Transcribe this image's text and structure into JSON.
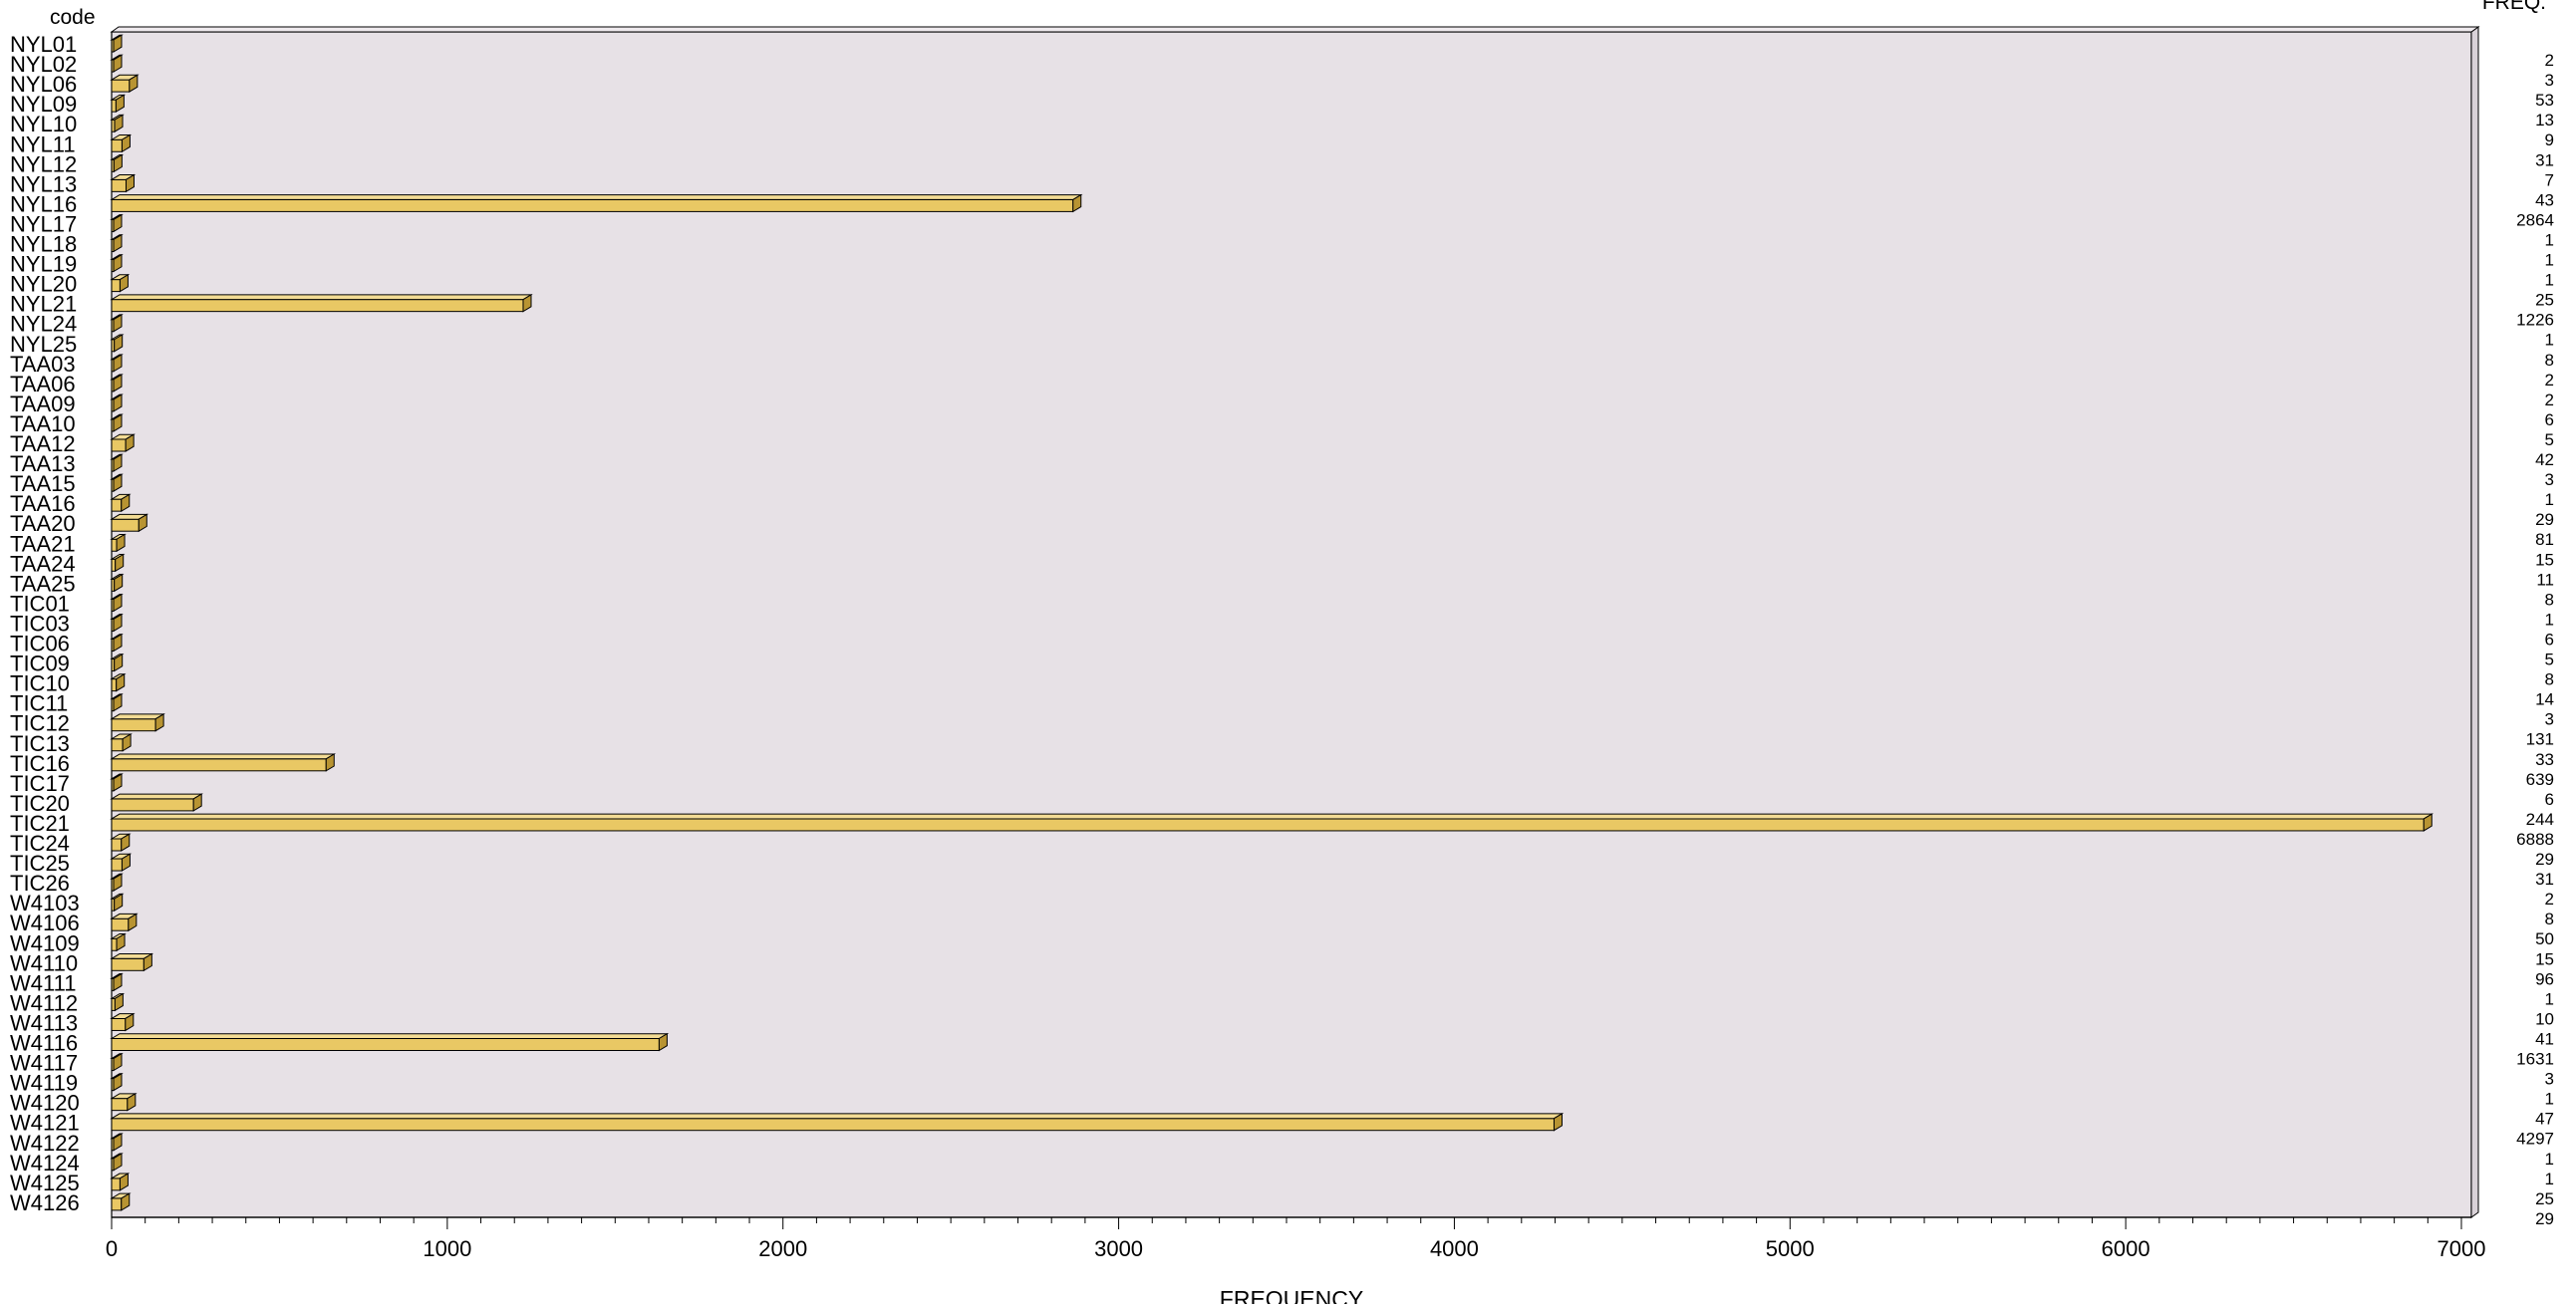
{
  "chart_data": {
    "type": "bar",
    "orientation": "horizontal",
    "ylabel": "code",
    "xlabel": "FREQUENCY",
    "freq_column_label": "FREQ.",
    "xlim": [
      0,
      7000
    ],
    "xticks": [
      0,
      1000,
      2000,
      3000,
      4000,
      5000,
      6000,
      7000
    ],
    "grid": false,
    "colors": {
      "plot_background": "#e7e1e6",
      "bar_front": "#e9c864",
      "bar_top": "#f3dc95",
      "bar_side": "#b89432",
      "outline": "#000000"
    },
    "categories": [
      "NYL01",
      "NYL02",
      "NYL06",
      "NYL09",
      "NYL10",
      "NYL11",
      "NYL12",
      "NYL13",
      "NYL16",
      "NYL17",
      "NYL18",
      "NYL19",
      "NYL20",
      "NYL21",
      "NYL24",
      "NYL25",
      "TAA03",
      "TAA06",
      "TAA09",
      "TAA10",
      "TAA12",
      "TAA13",
      "TAA15",
      "TAA16",
      "TAA20",
      "TAA21",
      "TAA24",
      "TAA25",
      "TIC01",
      "TIC03",
      "TIC06",
      "TIC09",
      "TIC10",
      "TIC11",
      "TIC12",
      "TIC13",
      "TIC16",
      "TIC17",
      "TIC20",
      "TIC21",
      "TIC24",
      "TIC25",
      "TIC26",
      "W4103",
      "W4106",
      "W4109",
      "W4110",
      "W4111",
      "W4112",
      "W4113",
      "W4116",
      "W4117",
      "W4119",
      "W4120",
      "W4121",
      "W4122",
      "W4124",
      "W4125",
      "W4126"
    ],
    "values": [
      2,
      3,
      53,
      13,
      9,
      31,
      7,
      43,
      2864,
      1,
      1,
      1,
      25,
      1226,
      1,
      8,
      2,
      2,
      6,
      5,
      42,
      3,
      1,
      29,
      81,
      15,
      11,
      8,
      1,
      6,
      5,
      8,
      14,
      3,
      131,
      33,
      639,
      6,
      244,
      6888,
      29,
      31,
      2,
      8,
      50,
      15,
      96,
      1,
      10,
      41,
      1631,
      3,
      1,
      47,
      4297,
      1,
      1,
      25,
      29
    ],
    "freq_labels": [
      "2",
      "3",
      "53",
      "13",
      "9",
      "31",
      "7",
      "43",
      "2864",
      "1",
      "1",
      "1",
      "25",
      "1226",
      "1",
      "8",
      "2",
      "2",
      "6",
      "5",
      "42",
      "3",
      "1",
      "29",
      "81",
      "15",
      "11",
      "8",
      "1",
      "6",
      "5",
      "8",
      "14",
      "3",
      "131",
      "33",
      "639",
      "6",
      "244",
      "6888",
      "29",
      "31",
      "2",
      "8",
      "50",
      "15",
      "96",
      "1",
      "10",
      "41",
      "1631",
      "3",
      "1",
      "47",
      "4297",
      "1",
      "1",
      "25",
      "29"
    ]
  }
}
